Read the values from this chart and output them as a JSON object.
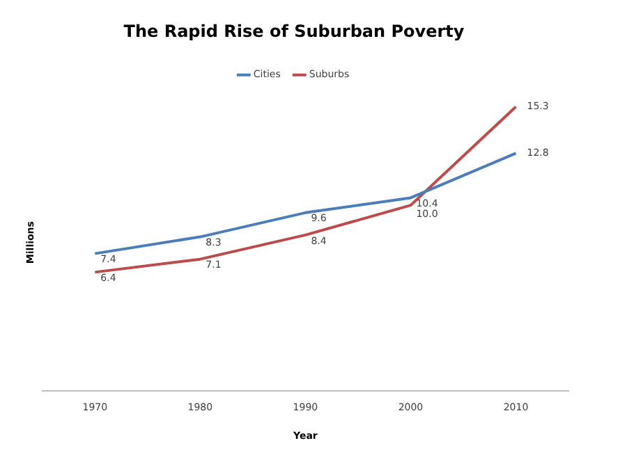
{
  "chart_data": {
    "type": "line",
    "title": "The Rapid Rise of Suburban Poverty",
    "xlabel": "Year",
    "ylabel": "Millions",
    "categories": [
      "1970",
      "1980",
      "1990",
      "2000",
      "2010"
    ],
    "series": [
      {
        "name": "Cities",
        "color": "#4a7ebb",
        "values": [
          7.4,
          8.3,
          9.6,
          10.4,
          12.8
        ],
        "value_labels": [
          "7.4",
          "8.3",
          "9.6",
          "10.4",
          "12.8"
        ]
      },
      {
        "name": "Suburbs",
        "color": "#be4b48",
        "values": [
          6.4,
          7.1,
          8.4,
          10.0,
          15.3
        ],
        "value_labels": [
          "6.4",
          "7.1",
          "8.4",
          "10.0",
          "15.3"
        ]
      }
    ],
    "tick_labels": "x",
    "grid": false,
    "legend": "top",
    "marker": "none"
  }
}
